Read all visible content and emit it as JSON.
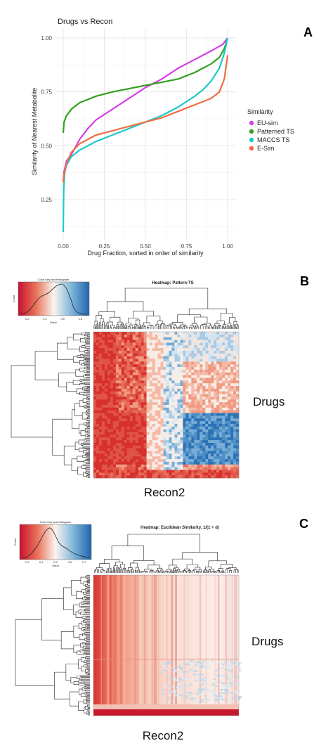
{
  "chart_data": [
    {
      "panel": "A",
      "type": "line",
      "title": "Drugs vs Recon",
      "xlabel": "Drug Fraction, sorted in order of similarity",
      "ylabel": "Similarity of Nearest Metabolite",
      "xlim": [
        0,
        1
      ],
      "ylim": [
        0.1,
        1.0
      ],
      "xticks": [
        "0.00",
        "0.25",
        "0.50",
        "0.75",
        "1.00"
      ],
      "yticks": [
        "0.25",
        "0.50",
        "0.75",
        "1.00"
      ],
      "grid": true,
      "legend": {
        "title": "Similarity",
        "position": "right"
      },
      "series": [
        {
          "name": "EU-sim",
          "color": "#d63ee6",
          "x": [
            0.0,
            0.005,
            0.02,
            0.05,
            0.1,
            0.15,
            0.2,
            0.3,
            0.4,
            0.5,
            0.6,
            0.7,
            0.8,
            0.9,
            0.97,
            1.0
          ],
          "y": [
            0.33,
            0.38,
            0.43,
            0.46,
            0.53,
            0.58,
            0.62,
            0.67,
            0.72,
            0.77,
            0.81,
            0.86,
            0.9,
            0.94,
            0.97,
            1.0
          ]
        },
        {
          "name": "Patterned TS",
          "color": "#34a020",
          "x": [
            0.0,
            0.005,
            0.02,
            0.05,
            0.1,
            0.2,
            0.3,
            0.4,
            0.5,
            0.6,
            0.7,
            0.8,
            0.9,
            0.95,
            0.98,
            1.0
          ],
          "y": [
            0.56,
            0.61,
            0.64,
            0.67,
            0.7,
            0.73,
            0.75,
            0.765,
            0.78,
            0.795,
            0.81,
            0.84,
            0.88,
            0.91,
            0.95,
            1.0
          ]
        },
        {
          "name": "MACCS TS",
          "color": "#1fc7c9",
          "x": [
            0.0,
            0.003,
            0.01,
            0.02,
            0.05,
            0.1,
            0.2,
            0.3,
            0.4,
            0.5,
            0.6,
            0.7,
            0.8,
            0.85,
            0.9,
            0.95,
            0.98,
            1.0
          ],
          "y": [
            0.1,
            0.3,
            0.38,
            0.41,
            0.45,
            0.48,
            0.52,
            0.55,
            0.58,
            0.61,
            0.64,
            0.68,
            0.73,
            0.76,
            0.8,
            0.86,
            0.93,
            1.0
          ]
        },
        {
          "name": "E-Sim",
          "color": "#ef6e42",
          "x": [
            0.0,
            0.005,
            0.02,
            0.05,
            0.1,
            0.2,
            0.3,
            0.4,
            0.5,
            0.6,
            0.7,
            0.8,
            0.9,
            0.95,
            0.98,
            1.0
          ],
          "y": [
            0.33,
            0.37,
            0.42,
            0.47,
            0.51,
            0.55,
            0.57,
            0.59,
            0.61,
            0.63,
            0.66,
            0.69,
            0.72,
            0.75,
            0.81,
            0.92
          ]
        }
      ]
    },
    {
      "panel": "B",
      "type": "heatmap",
      "title": "Heatmap: Pattern-TS",
      "xlabel": "Recon2",
      "ylabel": "Drugs",
      "color_key": {
        "title": "Color Key and Histogram",
        "xlabel": "Value",
        "ylabel": "Count",
        "ticks": [
          "0.2",
          "0.4",
          "0.6",
          "0.8"
        ]
      }
    },
    {
      "panel": "C",
      "type": "heatmap",
      "title": "Heatmap: Euclidean Similarity. 1/(1 + d)",
      "xlabel": "Recon2",
      "ylabel": "Drugs",
      "color_key": {
        "title": "Color Key and Histogram",
        "xlabel": "Value",
        "ylabel": "Count",
        "ticks": [
          "0.3",
          "0.4",
          "0.5",
          "0.6",
          "0.7"
        ]
      }
    }
  ],
  "panels": {
    "a": "A",
    "b": "B",
    "c": "C"
  }
}
